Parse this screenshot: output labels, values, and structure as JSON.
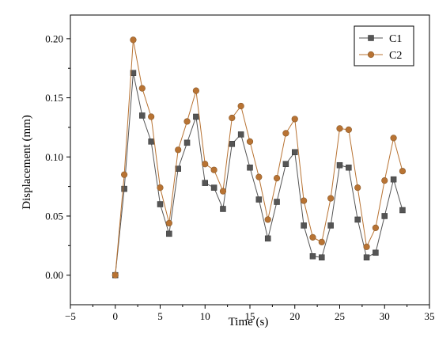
{
  "chart_data": {
    "type": "line",
    "title": "",
    "xlabel": "Time (s)",
    "ylabel": "Displacement (mm)",
    "xlim": [
      -5,
      35
    ],
    "ylim": [
      -0.025,
      0.22
    ],
    "xticks": [
      -5,
      0,
      5,
      10,
      15,
      20,
      25,
      30,
      35
    ],
    "yticks": [
      0.0,
      0.05,
      0.1,
      0.15,
      0.2
    ],
    "xtick_labels": [
      "−5",
      "0",
      "5",
      "10",
      "15",
      "20",
      "25",
      "30",
      "35"
    ],
    "ytick_labels": [
      "0.00",
      "0.05",
      "0.10",
      "0.15",
      "0.20"
    ],
    "grid": false,
    "legend_position": "top-right",
    "x": [
      0,
      1,
      2,
      3,
      4,
      5,
      6,
      7,
      8,
      9,
      10,
      11,
      12,
      13,
      14,
      15,
      16,
      17,
      18,
      19,
      20,
      21,
      22,
      23,
      24,
      25,
      26,
      27,
      28,
      29,
      30,
      31,
      32
    ],
    "series": [
      {
        "name": "C1",
        "marker": "square",
        "color": "#555555",
        "values": [
          0.0,
          0.073,
          0.171,
          0.135,
          0.113,
          0.06,
          0.035,
          0.09,
          0.112,
          0.134,
          0.078,
          0.074,
          0.056,
          0.111,
          0.119,
          0.091,
          0.064,
          0.031,
          0.062,
          0.094,
          0.104,
          0.042,
          0.016,
          0.015,
          0.042,
          0.093,
          0.091,
          0.047,
          0.015,
          0.019,
          0.05,
          0.081,
          0.055
        ]
      },
      {
        "name": "C2",
        "marker": "circle",
        "color": "#B87333",
        "values": [
          0.0,
          0.085,
          0.199,
          0.158,
          0.134,
          0.074,
          0.044,
          0.106,
          0.13,
          0.156,
          0.094,
          0.089,
          0.071,
          0.133,
          0.143,
          0.113,
          0.083,
          0.047,
          0.082,
          0.12,
          0.132,
          0.063,
          0.032,
          0.028,
          0.065,
          0.124,
          0.123,
          0.074,
          0.024,
          0.04,
          0.08,
          0.116,
          0.088
        ]
      }
    ]
  }
}
